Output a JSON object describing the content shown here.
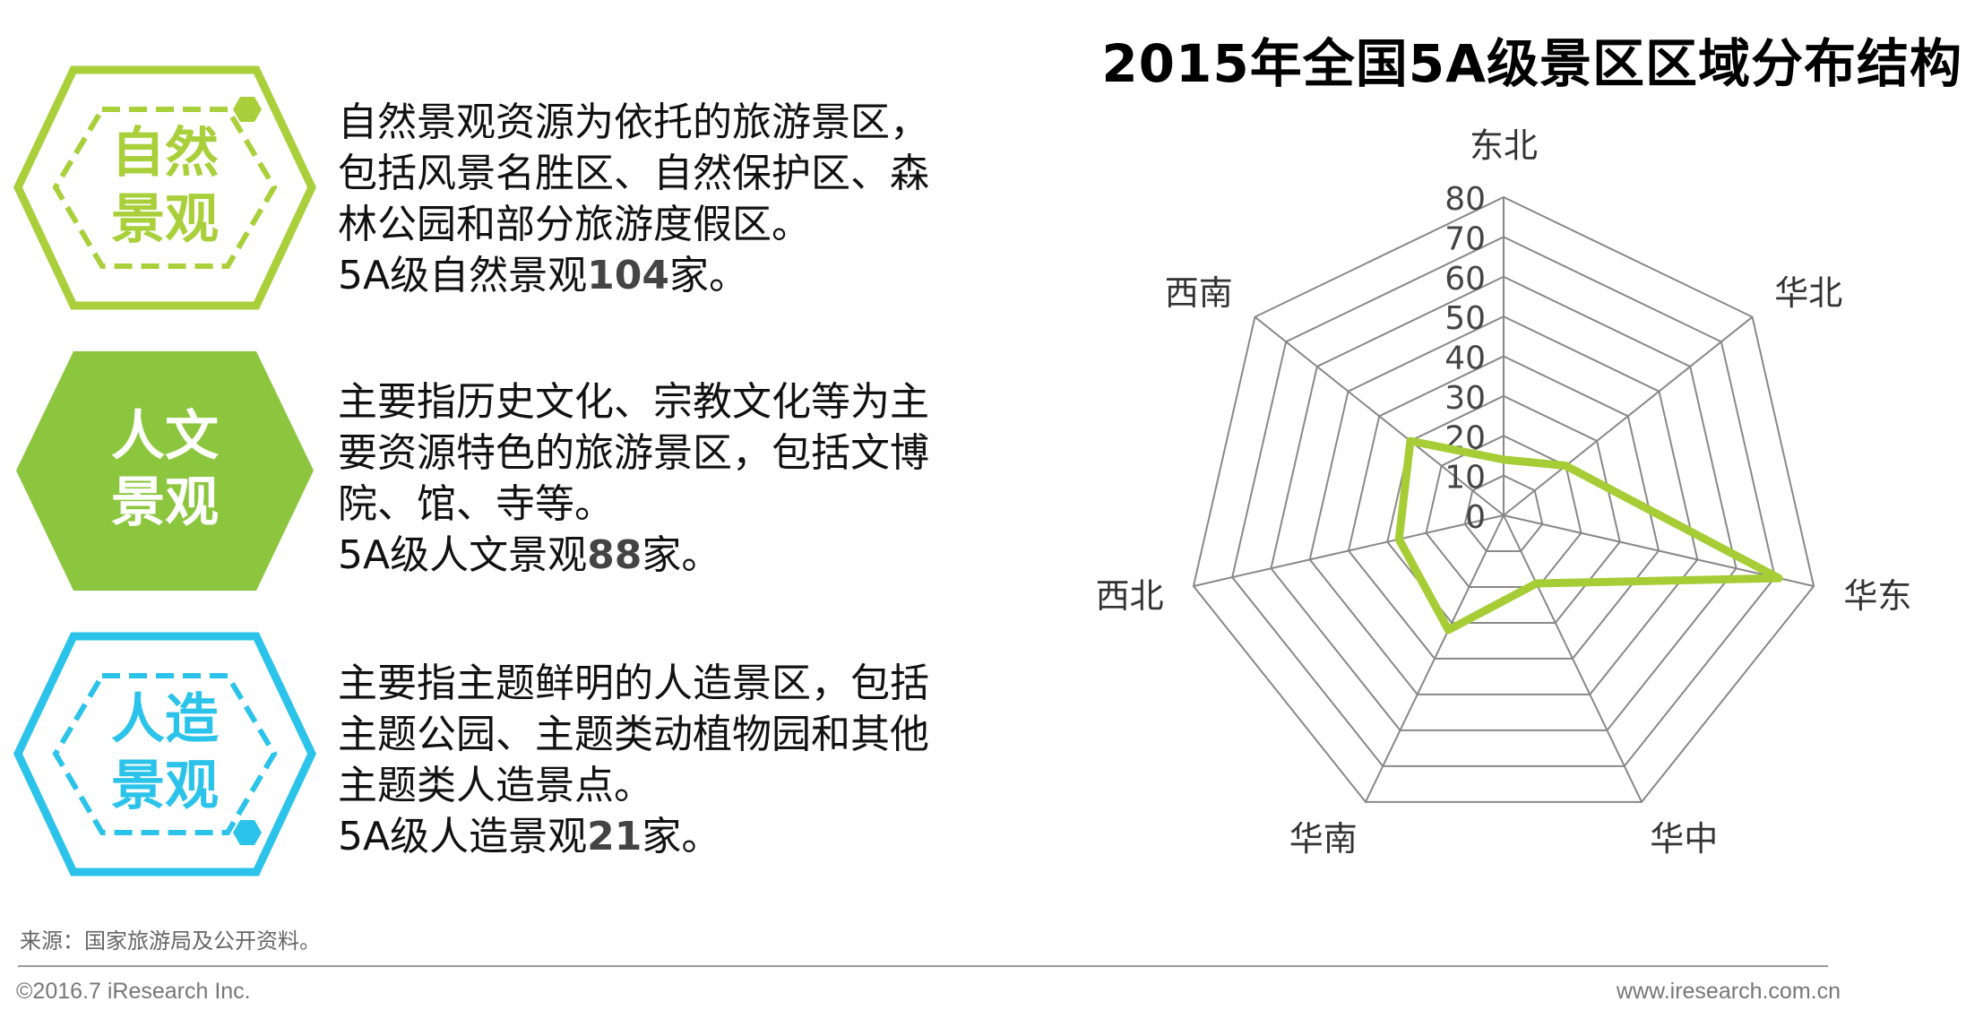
{
  "title": "2015年全国5A级景区区域分布结构",
  "categories": [
    {
      "label_lines": [
        "自然",
        "景观"
      ],
      "style": "outline-dashed",
      "color": "#a9cf3a",
      "text_color": "#a9cf3a",
      "lines": [
        "自然景观资源为依托的旅游景区，",
        "包括风景名胜区、自然保护区、森",
        "林公园和部分旅游度假区。"
      ],
      "count_pre": "5A级自然景观",
      "count": "104",
      "count_post": "家。"
    },
    {
      "label_lines": [
        "人文",
        "景观"
      ],
      "style": "filled",
      "color": "#8cc63f",
      "text_color": "#ffffff",
      "lines": [
        "主要指历史文化、宗教文化等为主",
        "要资源特色的旅游景区，包括文博",
        "院、馆、寺等。"
      ],
      "count_pre": "5A级人文景观",
      "count": "88",
      "count_post": "家。"
    },
    {
      "label_lines": [
        "人造",
        "景观"
      ],
      "style": "outline-dashed",
      "color": "#2bc3ea",
      "text_color": "#2bc3ea",
      "lines": [
        "主要指主题鲜明的人造景区，包括",
        "主题公园、主题类动植物园和其他",
        "主题类人造景点。"
      ],
      "count_pre": "5A级人造景观",
      "count": "21",
      "count_post": "家。"
    }
  ],
  "chart_data": {
    "type": "radar",
    "title": "2015年全国5A级景区区域分布结构",
    "categories": [
      "东北",
      "华北",
      "华东",
      "华中",
      "华南",
      "西北",
      "西南"
    ],
    "values": [
      14,
      20,
      71,
      19,
      32,
      27,
      30
    ],
    "rlim": [
      0,
      80
    ],
    "ticks": [
      "0",
      "10",
      "20",
      "30",
      "40",
      "50",
      "60",
      "70",
      "80"
    ],
    "grid": true,
    "legend": "none",
    "series_color": "#a6cd35",
    "grid_color": "#888888"
  },
  "footer": {
    "source": "来源：国家旅游局及公开资料。",
    "copyright": "©2016.7 iResearch Inc.",
    "url": "www.iresearch.com.cn"
  }
}
